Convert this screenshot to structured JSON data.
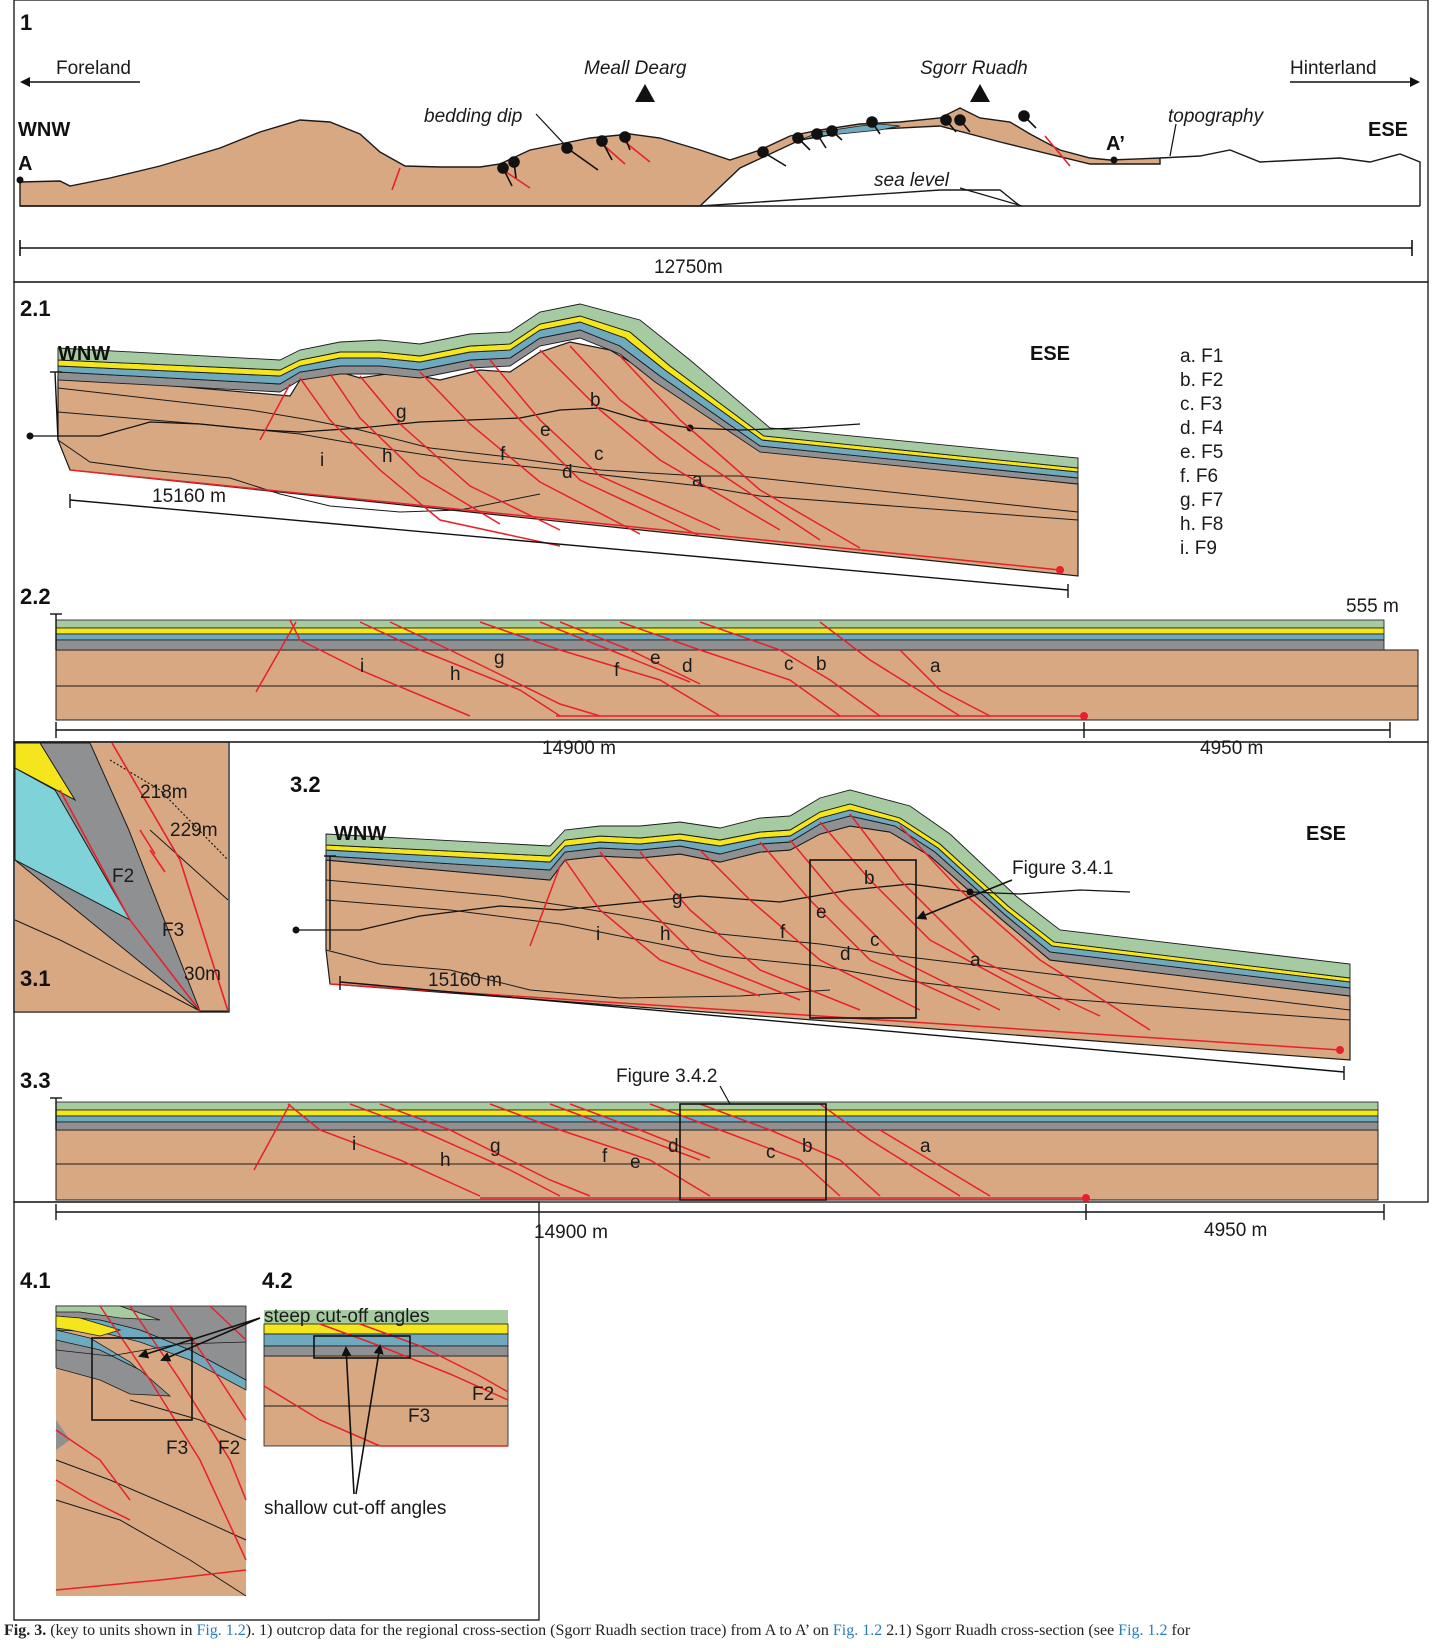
{
  "colors": {
    "host_rock": "#d8a883",
    "green_unit": "#a6cba2",
    "yellow_unit": "#f4e51c",
    "blue_unit": "#6ea9bd",
    "cyan_unit": "#7fd3d8",
    "grey_unit": "#8f9092",
    "fault": "#e8202a",
    "line": "#1a1a1a"
  },
  "panel1": {
    "number": "1",
    "foreland": "Foreland",
    "hinterland": "Hinterland",
    "peak1": "Meall Dearg",
    "peak2": "Sgorr Ruadh",
    "wnw": "WNW",
    "ese": "ESE",
    "point_a": "A",
    "point_a_prime": "A’",
    "bedding_dip": "bedding dip",
    "topography": "topography",
    "sea_level": "sea level",
    "scale": "12750m"
  },
  "panel2_1": {
    "number": "2.1",
    "wnw": "WNW",
    "ese": "ESE",
    "scale": "15160 m",
    "fault_labels": [
      "a",
      "b",
      "c",
      "d",
      "e",
      "f",
      "g",
      "h",
      "i"
    ]
  },
  "legend": [
    "a. F1",
    "b. F2",
    "c. F3",
    "d. F4",
    "e. F5",
    "f. F6",
    "g. F7",
    "h. F8",
    "i. F9"
  ],
  "panel2_2": {
    "number": "2.2",
    "thickness": "555 m",
    "scale_left": "14900 m",
    "scale_right": "4950 m",
    "fault_labels": [
      "i",
      "h",
      "g",
      "f",
      "e",
      "d",
      "c",
      "b",
      "a"
    ]
  },
  "panel3_1": {
    "number": "3.1",
    "m218": "218m",
    "m229": "229m",
    "f2": "F2",
    "f3": "F3",
    "m30": "30m"
  },
  "panel3_2": {
    "number": "3.2",
    "wnw": "WNW",
    "ese": "ESE",
    "scale": "15160 m",
    "figure_ref": "Figure 3.4.1",
    "fault_labels": [
      "a",
      "b",
      "c",
      "d",
      "e",
      "f",
      "g",
      "h",
      "i"
    ]
  },
  "panel3_3": {
    "number": "3.3",
    "figure_ref": "Figure 3.4.2",
    "scale_left": "14900 m",
    "scale_right": "4950 m",
    "fault_labels": [
      "i",
      "h",
      "g",
      "f",
      "e",
      "d",
      "c",
      "b",
      "a"
    ]
  },
  "panel4_1": {
    "number": "4.1",
    "steep": "steep cut-off angles",
    "f3": "F3",
    "f2": "F2"
  },
  "panel4_2": {
    "number": "4.2",
    "shallow": "shallow cut-off angles",
    "f2": "F2",
    "f3": "F3"
  },
  "caption": {
    "fig": "Fig. 3.",
    "text1": " (key to units shown in ",
    "ref1": "Fig. 1.2",
    "text2": "). 1) outcrop data for the regional cross-section (Sgorr Ruadh section trace) from A to A’ on ",
    "ref2": "Fig. 1.2",
    "text3": " 2.1) Sgorr Ruadh cross-section (see ",
    "ref3": "Fig. 1.2",
    "text4": " for"
  }
}
